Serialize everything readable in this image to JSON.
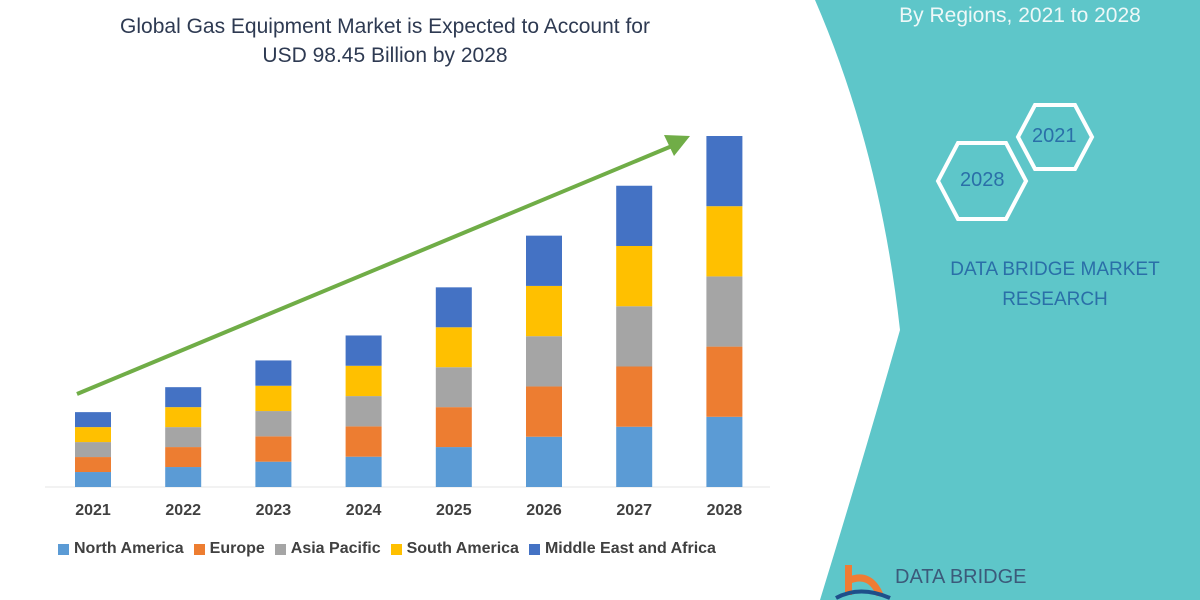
{
  "header": {
    "title_line1": "Global Gas Equipment Market is Expected to Account for",
    "title_line2": "USD 98.45 Billion by 2028"
  },
  "side_panel": {
    "subtitle": "By Regions, 2021 to 2028",
    "hex_1": "2021",
    "hex_2": "2028",
    "brand_line1": "DATA BRIDGE MARKET",
    "brand_line2": "RESEARCH",
    "logo_text": "DATA BRIDGE",
    "panel_color": "#5ec6c9"
  },
  "chart_data": {
    "type": "bar",
    "stacked": true,
    "title": "Global Gas Equipment Market is Expected to Account for USD 98.45 Billion by 2028",
    "xlabel": "",
    "ylabel": "",
    "ylim": [
      0,
      100
    ],
    "grid": false,
    "legend_position": "bottom",
    "trend_arrow": true,
    "categories": [
      "2021",
      "2022",
      "2023",
      "2024",
      "2025",
      "2026",
      "2027",
      "2028"
    ],
    "series": [
      {
        "name": "North America",
        "color": "#5b9bd5",
        "values": [
          4.2,
          5.6,
          7.1,
          8.5,
          11.2,
          14.1,
          16.9,
          19.69
        ]
      },
      {
        "name": "Europe",
        "color": "#ed7d31",
        "values": [
          4.2,
          5.6,
          7.1,
          8.5,
          11.2,
          14.1,
          16.9,
          19.69
        ]
      },
      {
        "name": "Asia Pacific",
        "color": "#a5a5a5",
        "values": [
          4.2,
          5.6,
          7.1,
          8.5,
          11.2,
          14.1,
          16.9,
          19.69
        ]
      },
      {
        "name": "South America",
        "color": "#ffc000",
        "values": [
          4.2,
          5.6,
          7.1,
          8.5,
          11.2,
          14.1,
          16.9,
          19.69
        ]
      },
      {
        "name": "Middle East and Africa",
        "color": "#4472c4",
        "values": [
          4.2,
          5.6,
          7.1,
          8.5,
          11.2,
          14.1,
          16.9,
          19.69
        ]
      }
    ]
  }
}
